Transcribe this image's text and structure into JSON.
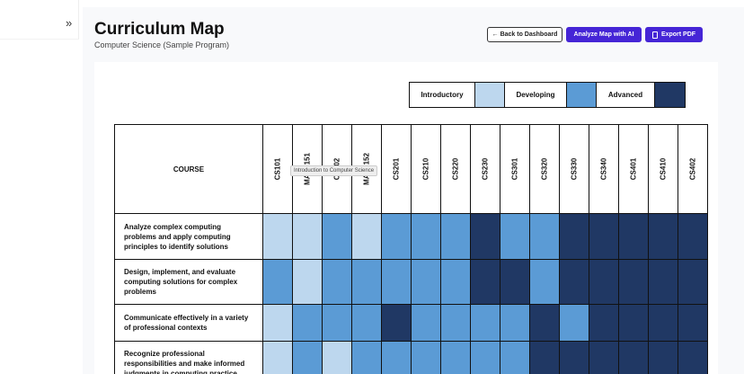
{
  "sidebar": {
    "expand_icon": "double-chevron-right-icon",
    "expand_glyph": "»"
  },
  "header": {
    "title": "Curriculum Map",
    "subtitle": "Computer Science (Sample Program)"
  },
  "buttons": {
    "back": "← Back to Dashboard",
    "analyze": "Analyze Map with AI",
    "export": "Export PDF",
    "export_icon": "file-icon"
  },
  "legend": [
    {
      "label": "Introductory",
      "color": "#bdd7ee"
    },
    {
      "label": "Developing",
      "color": "#5b9bd5"
    },
    {
      "label": "Advanced",
      "color": "#203864"
    }
  ],
  "table": {
    "course_header": "COURSE",
    "columns": [
      "CS101",
      "MATH151",
      "CS102",
      "MATH152",
      "CS201",
      "CS210",
      "CS220",
      "CS230",
      "CS301",
      "CS320",
      "CS330",
      "CS340",
      "CS401",
      "CS410",
      "CS402"
    ],
    "rows": [
      {
        "outcome": "Analyze complex computing problems and apply computing principles to identify solutions",
        "levels": [
          1,
          1,
          2,
          1,
          2,
          2,
          2,
          3,
          2,
          2,
          3,
          3,
          3,
          3,
          3
        ]
      },
      {
        "outcome": "Design, implement, and evaluate computing solutions for complex problems",
        "levels": [
          2,
          1,
          2,
          2,
          2,
          2,
          2,
          3,
          3,
          2,
          3,
          3,
          3,
          3,
          3
        ]
      },
      {
        "outcome": "Communicate effectively in a variety of professional contexts",
        "levels": [
          1,
          2,
          2,
          2,
          3,
          2,
          2,
          2,
          2,
          3,
          2,
          3,
          3,
          3,
          3
        ]
      },
      {
        "outcome": "Recognize professional responsibilities and make informed judgments in computing practice",
        "levels": [
          1,
          2,
          1,
          2,
          2,
          2,
          2,
          2,
          2,
          3,
          3,
          3,
          3,
          3,
          3
        ]
      }
    ]
  },
  "tooltip": "Introduction to Computer Science"
}
